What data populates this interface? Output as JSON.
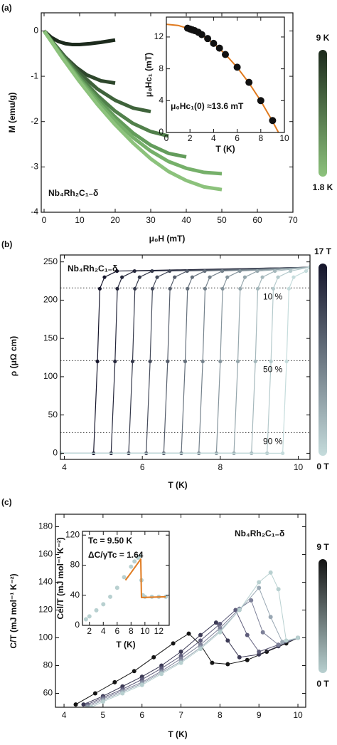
{
  "chart_data": [
    {
      "type": "line",
      "panel_label": "(a)",
      "xlabel": "μ₀H (mT)",
      "ylabel": "M (emu/g)",
      "annotations": [
        "Nb₄Rh₂C₁₋δ"
      ],
      "xlim": [
        -0.8,
        70
      ],
      "ylim": [
        -4,
        0.4
      ],
      "xticks": [
        0,
        10,
        20,
        30,
        40,
        50,
        60,
        70
      ],
      "yticks": [
        0,
        -1,
        -2,
        -3,
        -4
      ],
      "colorbar": {
        "top": "9 K",
        "bottom": "1.8 K",
        "colors": [
          "#1c2a1c",
          "#8cc27c"
        ]
      },
      "series": [
        {
          "color": "#1c2a1c",
          "markers": false,
          "x": [
            0,
            2,
            4,
            6,
            8,
            10,
            13,
            16,
            20
          ],
          "values": [
            0,
            -0.14,
            -0.23,
            -0.28,
            -0.3,
            -0.3,
            -0.28,
            -0.25,
            -0.2
          ]
        },
        {
          "color": "#2e472c",
          "markers": false,
          "x": [
            0,
            3,
            6,
            9,
            12,
            16,
            20
          ],
          "values": [
            0,
            -0.3,
            -0.58,
            -0.8,
            -0.97,
            -1.1,
            -1.15
          ]
        },
        {
          "color": "#3f633b",
          "markers": false,
          "x": [
            0,
            5,
            10,
            15,
            20,
            25,
            30
          ],
          "values": [
            0,
            -0.5,
            -0.93,
            -1.28,
            -1.53,
            -1.7,
            -1.78
          ]
        },
        {
          "color": "#51804b",
          "markers": false,
          "x": [
            0,
            5,
            10,
            15,
            20,
            25,
            30,
            35
          ],
          "values": [
            0,
            -0.52,
            -1.0,
            -1.42,
            -1.77,
            -2.04,
            -2.22,
            -2.32
          ]
        },
        {
          "color": "#639c5b",
          "markers": false,
          "x": [
            0,
            5,
            10,
            15,
            20,
            25,
            30,
            35,
            40
          ],
          "values": [
            0,
            -0.55,
            -1.05,
            -1.5,
            -1.9,
            -2.25,
            -2.52,
            -2.7,
            -2.78
          ]
        },
        {
          "color": "#76b06a",
          "markers": false,
          "x": [
            0,
            5,
            10,
            15,
            20,
            25,
            30,
            35,
            40,
            45,
            50
          ],
          "values": [
            0,
            -0.56,
            -1.08,
            -1.56,
            -1.98,
            -2.35,
            -2.65,
            -2.88,
            -3.03,
            -3.12,
            -3.15
          ]
        },
        {
          "color": "#8cc27c",
          "markers": false,
          "x": [
            0,
            5,
            10,
            15,
            20,
            25,
            30,
            35,
            40,
            45,
            50
          ],
          "values": [
            0,
            -0.58,
            -1.12,
            -1.62,
            -2.07,
            -2.47,
            -2.82,
            -3.1,
            -3.3,
            -3.44,
            -3.5
          ]
        }
      ]
    },
    {
      "type": "line",
      "xlabel": "T (K)",
      "ylabel": "μ₀Hc₁ (mT)",
      "annotations": [
        "μ₀Hc₁(0) ≈13.6 mT"
      ],
      "xlim": [
        0,
        10
      ],
      "ylim": [
        0,
        14.5
      ],
      "xticks": [
        0,
        2,
        4,
        6,
        8,
        10
      ],
      "yticks": [
        0,
        4,
        8,
        12
      ],
      "series": [
        {
          "color": "#e07a1f",
          "markers": false,
          "x": [
            0,
            1,
            2,
            3,
            4,
            5,
            6,
            7,
            8,
            9,
            9.5
          ],
          "values": [
            13.6,
            13.45,
            13.0,
            12.24,
            11.19,
            9.83,
            8.18,
            6.22,
            3.96,
            1.39,
            0
          ]
        },
        {
          "color": "#111111",
          "markers": true,
          "line": false,
          "x": [
            1.8,
            2.0,
            2.2,
            2.4,
            2.7,
            3.0,
            3.5,
            4.0,
            4.5,
            5.0,
            6.0,
            7.0,
            8.0,
            9.0
          ],
          "values": [
            13.1,
            13.0,
            12.9,
            12.8,
            12.6,
            12.3,
            11.8,
            11.2,
            10.6,
            9.8,
            8.2,
            6.3,
            4.0,
            1.5
          ]
        }
      ]
    },
    {
      "type": "line",
      "panel_label": "(b)",
      "xlabel": "T (K)",
      "ylabel": "ρ (μΩ cm)",
      "annotations": [
        "Nb₄Rh₂C₁₋δ"
      ],
      "xlim": [
        3.9,
        10.3
      ],
      "ylim": [
        -8,
        259
      ],
      "xticks": [
        4,
        6,
        8,
        10
      ],
      "yticks": [
        0,
        50,
        100,
        150,
        200,
        250
      ],
      "colorbar": {
        "top": "17 T",
        "bottom": "0 T",
        "colors": [
          "#15152b",
          "#c5dcdc"
        ]
      },
      "thresholds": [
        {
          "value": 216,
          "label": "10 %"
        },
        {
          "value": 121,
          "label": "50 %"
        },
        {
          "value": 27,
          "label": "90 %"
        }
      ],
      "series": [
        {
          "color": "#15152b",
          "markers": true,
          "x": [
            3.9,
            4.75,
            4.85,
            4.91,
            5.03,
            5.35,
            10.3
          ],
          "values": [
            0,
            0,
            120,
            215,
            230,
            238,
            243
          ]
        },
        {
          "color": "#25273b",
          "markers": true,
          "x": [
            3.9,
            5.2,
            5.3,
            5.36,
            5.48,
            5.8,
            10.3
          ],
          "values": [
            0,
            0,
            120,
            215,
            230,
            238,
            243
          ]
        },
        {
          "color": "#35394b",
          "markers": true,
          "x": [
            3.9,
            5.65,
            5.75,
            5.81,
            5.93,
            6.25,
            10.3
          ],
          "values": [
            0,
            0,
            120,
            215,
            230,
            238,
            243
          ]
        },
        {
          "color": "#454b5b",
          "markers": true,
          "x": [
            3.9,
            6.1,
            6.2,
            6.26,
            6.38,
            6.7,
            10.3
          ],
          "values": [
            0,
            0,
            120,
            215,
            230,
            238,
            243
          ]
        },
        {
          "color": "#555d6b",
          "markers": true,
          "x": [
            3.9,
            6.55,
            6.65,
            6.71,
            6.83,
            7.15,
            10.3
          ],
          "values": [
            0,
            0,
            120,
            215,
            230,
            238,
            243
          ]
        },
        {
          "color": "#65707c",
          "markers": true,
          "x": [
            3.9,
            7.0,
            7.1,
            7.16,
            7.28,
            7.6,
            10.3
          ],
          "values": [
            0,
            0,
            120,
            215,
            230,
            238,
            243
          ]
        },
        {
          "color": "#75828c",
          "markers": true,
          "x": [
            3.9,
            7.45,
            7.55,
            7.61,
            7.73,
            8.05,
            10.3
          ],
          "values": [
            0,
            0,
            120,
            215,
            230,
            238,
            243
          ]
        },
        {
          "color": "#85949c",
          "markers": true,
          "x": [
            3.9,
            7.9,
            8.0,
            8.06,
            8.18,
            8.5,
            10.3
          ],
          "values": [
            0,
            0,
            120,
            215,
            230,
            238,
            243
          ]
        },
        {
          "color": "#95a6ac",
          "markers": true,
          "x": [
            3.9,
            8.35,
            8.45,
            8.51,
            8.63,
            8.95,
            10.3
          ],
          "values": [
            0,
            0,
            120,
            215,
            230,
            238,
            243
          ]
        },
        {
          "color": "#a5b8bc",
          "markers": true,
          "x": [
            3.9,
            8.8,
            8.9,
            8.96,
            9.08,
            9.4,
            10.3
          ],
          "values": [
            0,
            0,
            120,
            215,
            230,
            238,
            243
          ]
        },
        {
          "color": "#b5cacc",
          "markers": true,
          "x": [
            3.9,
            9.2,
            9.3,
            9.36,
            9.48,
            9.8,
            10.3
          ],
          "values": [
            0,
            0,
            120,
            215,
            230,
            238,
            243
          ]
        },
        {
          "color": "#c5dcdc",
          "markers": true,
          "x": [
            3.9,
            9.6,
            9.7,
            9.76,
            9.88,
            10.2,
            10.3
          ],
          "values": [
            0,
            0,
            120,
            215,
            230,
            238,
            243
          ]
        }
      ]
    },
    {
      "type": "line",
      "panel_label": "(c)",
      "xlabel": "T (K)",
      "ylabel": "C/T (mJ mol⁻¹ K⁻²)",
      "annotations": [
        "Nb₄Rh₂C₁₋δ"
      ],
      "xlim": [
        3.78,
        10.2
      ],
      "ylim": [
        50,
        189
      ],
      "xticks": [
        4,
        5,
        6,
        7,
        8,
        9,
        10
      ],
      "yticks": [
        60,
        80,
        100,
        120,
        140,
        160,
        180
      ],
      "colorbar": {
        "top": "9 T",
        "bottom": "0 T",
        "colors": [
          "#141414",
          "#b8d0d0"
        ]
      },
      "series": [
        {
          "color": "#141414",
          "markers": true,
          "x": [
            4.3,
            4.8,
            5.3,
            5.8,
            6.3,
            6.8,
            7.2,
            7.5,
            7.8,
            8.2,
            8.7,
            9.2,
            9.7,
            10.0
          ],
          "values": [
            52,
            60,
            68,
            76,
            86,
            96,
            103,
            95,
            82,
            81,
            84,
            90,
            96,
            100
          ]
        },
        {
          "color": "#3c3a55",
          "markers": true,
          "x": [
            4.5,
            5,
            5.5,
            6,
            6.5,
            7,
            7.5,
            7.9,
            8.2,
            8.5,
            9,
            9.5,
            10
          ],
          "values": [
            52,
            58,
            65,
            72,
            80,
            90,
            102,
            111,
            98,
            86,
            88,
            94,
            100
          ]
        },
        {
          "color": "#5e5c7a",
          "markers": true,
          "x": [
            4.6,
            5,
            5.5,
            6,
            6.5,
            7,
            7.5,
            8,
            8.4,
            8.7,
            9.0,
            9.5,
            10
          ],
          "values": [
            52,
            57,
            63,
            70,
            78,
            87,
            98,
            110,
            120,
            102,
            90,
            95,
            100
          ]
        },
        {
          "color": "#7d8098",
          "markers": true,
          "x": [
            4.6,
            5,
            5.5,
            6,
            6.5,
            7,
            7.5,
            8,
            8.5,
            8.8,
            9.1,
            9.5,
            10
          ],
          "values": [
            51,
            56,
            62,
            68,
            76,
            85,
            95,
            107,
            121,
            127,
            104,
            95,
            100
          ]
        },
        {
          "color": "#9aa8b4",
          "markers": true,
          "x": [
            4.6,
            5,
            5.5,
            6,
            6.5,
            7,
            7.5,
            8,
            8.5,
            9,
            9.3,
            9.6,
            10
          ],
          "values": [
            50,
            55,
            61,
            67,
            75,
            83,
            93,
            105,
            120,
            136,
            115,
            97,
            100
          ]
        },
        {
          "color": "#b8d0d0",
          "markers": true,
          "x": [
            4.7,
            5,
            5.5,
            6,
            6.5,
            7,
            7.5,
            8,
            8.5,
            9,
            9.3,
            9.5,
            9.7,
            10
          ],
          "values": [
            50,
            54,
            60,
            66,
            74,
            82,
            92,
            104,
            120,
            140,
            147,
            135,
            98,
            100
          ]
        }
      ]
    },
    {
      "type": "line",
      "xlabel": "T (K)",
      "ylabel": "Cel/T (mJ mol⁻¹ K⁻²)",
      "annotations": [
        "Tc = 9.50 K",
        "ΔC/γTc = 1.64"
      ],
      "xlim": [
        1,
        13.5
      ],
      "ylim": [
        0,
        125
      ],
      "xticks": [
        2,
        4,
        6,
        8,
        10,
        12
      ],
      "yticks": [
        0,
        40,
        80,
        120
      ],
      "series": [
        {
          "color": "#b8d0d0",
          "markers": true,
          "line": false,
          "x": [
            1.5,
            2,
            3,
            4,
            5,
            6,
            7,
            8,
            8.5,
            9,
            9.3,
            9.5,
            9.7,
            10,
            11,
            12,
            13
          ],
          "values": [
            8,
            12,
            20,
            28,
            38,
            50,
            64,
            78,
            85,
            90,
            92,
            60,
            40,
            38,
            38,
            38,
            38
          ]
        },
        {
          "color": "#e07a1f",
          "markers": false,
          "x": [
            7.2,
            8,
            9.4,
            9.5,
            13
          ],
          "values": [
            60,
            70,
            88,
            37,
            38
          ]
        }
      ]
    }
  ]
}
